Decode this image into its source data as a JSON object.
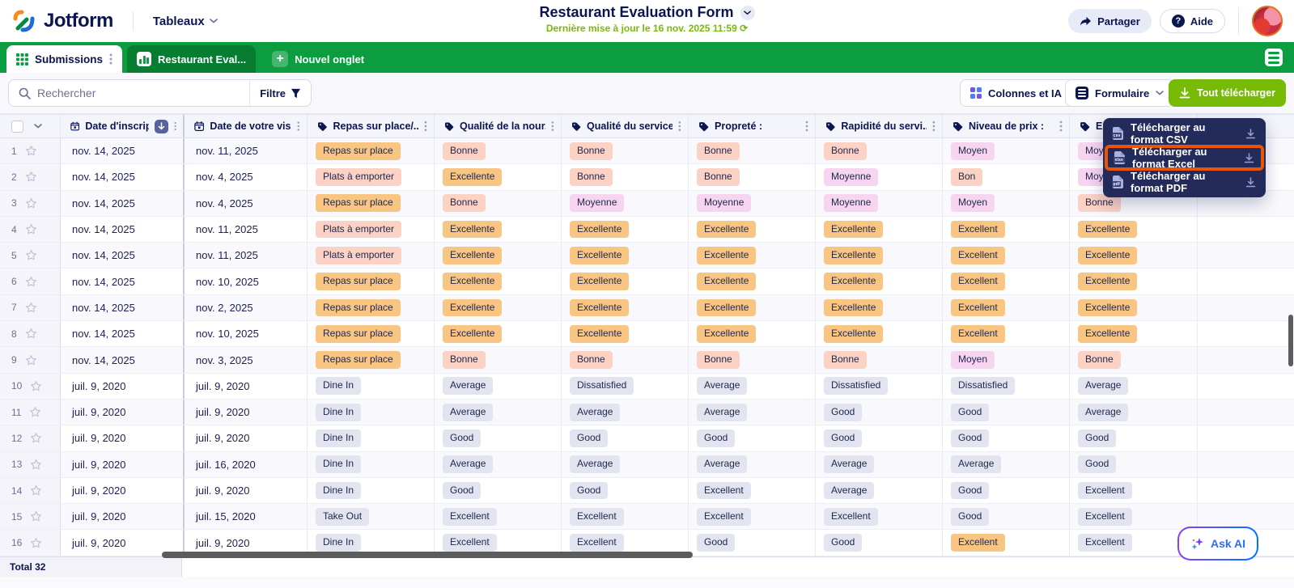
{
  "header": {
    "brand": "Jotform",
    "product_switcher": "Tableaux",
    "title": "Restaurant Evaluation Form",
    "subtitle": "Dernière mise à jour le 16 nov. 2025 11:59 ⟳",
    "share_label": "Partager",
    "help_label": "Aide"
  },
  "tabs": {
    "submissions": "Submissions",
    "report": "Restaurant Eval...",
    "new_tab": "Nouvel onglet"
  },
  "toolbar": {
    "search_placeholder": "Rechercher",
    "search_value": "",
    "filter_label": "Filtre",
    "columns_label": "Colonnes et IA",
    "form_label": "Formulaire",
    "download_all_label": "Tout télécharger"
  },
  "download_menu": {
    "items": [
      {
        "label": "Télécharger au format CSV",
        "format": "csv",
        "highlighted": false
      },
      {
        "label": "Télécharger au format Excel",
        "format": "xlsx",
        "highlighted": true
      },
      {
        "label": "Télécharger au format PDF",
        "format": "pdf",
        "highlighted": false
      }
    ]
  },
  "table": {
    "columns": [
      {
        "label": "Date d'inscript...",
        "icon": "calendar",
        "sorted": true
      },
      {
        "label": "Date de votre visi...",
        "icon": "calendar",
        "sorted": false
      },
      {
        "label": "Repas sur place/...",
        "icon": "tag",
        "sorted": false
      },
      {
        "label": "Qualité de la nour...",
        "icon": "tag",
        "sorted": false
      },
      {
        "label": "Qualité du service :",
        "icon": "tag",
        "sorted": false
      },
      {
        "label": "Propreté :",
        "icon": "tag",
        "sorted": false
      },
      {
        "label": "Rapidité du servi...",
        "icon": "tag",
        "sorted": false
      },
      {
        "label": "Niveau de prix :",
        "icon": "tag",
        "sorted": false
      },
      {
        "label": "Ex",
        "icon": "tag",
        "sorted": false
      }
    ],
    "rows": [
      {
        "num": "1",
        "date1": "nov. 14, 2025",
        "date2": "nov. 11, 2025",
        "cells": [
          {
            "t": "Repas sur place",
            "c": "orange"
          },
          {
            "t": "Bonne",
            "c": "salmon"
          },
          {
            "t": "Bonne",
            "c": "salmon"
          },
          {
            "t": "Bonne",
            "c": "salmon"
          },
          {
            "t": "Bonne",
            "c": "salmon"
          },
          {
            "t": "Moyen",
            "c": "pink"
          },
          {
            "t": "Moyenne",
            "c": "pink"
          }
        ]
      },
      {
        "num": "2",
        "date1": "nov. 14, 2025",
        "date2": "nov. 4, 2025",
        "cells": [
          {
            "t": "Plats à emporter",
            "c": "salmon"
          },
          {
            "t": "Excellente",
            "c": "orange"
          },
          {
            "t": "Bonne",
            "c": "salmon"
          },
          {
            "t": "Bonne",
            "c": "salmon"
          },
          {
            "t": "Moyenne",
            "c": "pink"
          },
          {
            "t": "Bon",
            "c": "salmon"
          },
          {
            "t": "Moyenne",
            "c": "pink"
          }
        ]
      },
      {
        "num": "3",
        "date1": "nov. 14, 2025",
        "date2": "nov. 4, 2025",
        "cells": [
          {
            "t": "Repas sur place",
            "c": "orange"
          },
          {
            "t": "Bonne",
            "c": "salmon"
          },
          {
            "t": "Moyenne",
            "c": "pink"
          },
          {
            "t": "Moyenne",
            "c": "pink"
          },
          {
            "t": "Moyenne",
            "c": "pink"
          },
          {
            "t": "Moyen",
            "c": "pink"
          },
          {
            "t": "Bonne",
            "c": "salmon"
          }
        ]
      },
      {
        "num": "4",
        "date1": "nov. 14, 2025",
        "date2": "nov. 11, 2025",
        "cells": [
          {
            "t": "Plats à emporter",
            "c": "salmon"
          },
          {
            "t": "Excellente",
            "c": "orange"
          },
          {
            "t": "Excellente",
            "c": "orange"
          },
          {
            "t": "Excellente",
            "c": "orange"
          },
          {
            "t": "Excellente",
            "c": "orange"
          },
          {
            "t": "Excellent",
            "c": "orange"
          },
          {
            "t": "Excellente",
            "c": "orange"
          }
        ]
      },
      {
        "num": "5",
        "date1": "nov. 14, 2025",
        "date2": "nov. 11, 2025",
        "cells": [
          {
            "t": "Plats à emporter",
            "c": "salmon"
          },
          {
            "t": "Excellente",
            "c": "orange"
          },
          {
            "t": "Excellente",
            "c": "orange"
          },
          {
            "t": "Excellente",
            "c": "orange"
          },
          {
            "t": "Excellente",
            "c": "orange"
          },
          {
            "t": "Excellent",
            "c": "orange"
          },
          {
            "t": "Excellente",
            "c": "orange"
          }
        ]
      },
      {
        "num": "6",
        "date1": "nov. 14, 2025",
        "date2": "nov. 10, 2025",
        "cells": [
          {
            "t": "Repas sur place",
            "c": "orange"
          },
          {
            "t": "Excellente",
            "c": "orange"
          },
          {
            "t": "Excellente",
            "c": "orange"
          },
          {
            "t": "Excellente",
            "c": "orange"
          },
          {
            "t": "Excellente",
            "c": "orange"
          },
          {
            "t": "Excellent",
            "c": "orange"
          },
          {
            "t": "Excellente",
            "c": "orange"
          }
        ]
      },
      {
        "num": "7",
        "date1": "nov. 14, 2025",
        "date2": "nov. 2, 2025",
        "cells": [
          {
            "t": "Repas sur place",
            "c": "orange"
          },
          {
            "t": "Excellente",
            "c": "orange"
          },
          {
            "t": "Excellente",
            "c": "orange"
          },
          {
            "t": "Excellente",
            "c": "orange"
          },
          {
            "t": "Excellente",
            "c": "orange"
          },
          {
            "t": "Excellent",
            "c": "orange"
          },
          {
            "t": "Excellente",
            "c": "orange"
          }
        ]
      },
      {
        "num": "8",
        "date1": "nov. 14, 2025",
        "date2": "nov. 10, 2025",
        "cells": [
          {
            "t": "Repas sur place",
            "c": "orange"
          },
          {
            "t": "Excellente",
            "c": "orange"
          },
          {
            "t": "Excellente",
            "c": "orange"
          },
          {
            "t": "Excellente",
            "c": "orange"
          },
          {
            "t": "Excellente",
            "c": "orange"
          },
          {
            "t": "Excellent",
            "c": "orange"
          },
          {
            "t": "Excellente",
            "c": "orange"
          }
        ]
      },
      {
        "num": "9",
        "date1": "nov. 14, 2025",
        "date2": "nov. 3, 2025",
        "cells": [
          {
            "t": "Repas sur place",
            "c": "orange"
          },
          {
            "t": "Bonne",
            "c": "salmon"
          },
          {
            "t": "Bonne",
            "c": "salmon"
          },
          {
            "t": "Bonne",
            "c": "salmon"
          },
          {
            "t": "Bonne",
            "c": "salmon"
          },
          {
            "t": "Moyen",
            "c": "pink"
          },
          {
            "t": "Bonne",
            "c": "salmon"
          }
        ]
      },
      {
        "num": "10",
        "date1": "juil. 9, 2020",
        "date2": "juil. 9, 2020",
        "cells": [
          {
            "t": "Dine In",
            "c": "gray"
          },
          {
            "t": "Average",
            "c": "gray"
          },
          {
            "t": "Dissatisfied",
            "c": "gray"
          },
          {
            "t": "Average",
            "c": "gray"
          },
          {
            "t": "Dissatisfied",
            "c": "gray"
          },
          {
            "t": "Dissatisfied",
            "c": "gray"
          },
          {
            "t": "Average",
            "c": "gray"
          }
        ]
      },
      {
        "num": "11",
        "date1": "juil. 9, 2020",
        "date2": "juil. 9, 2020",
        "cells": [
          {
            "t": "Dine In",
            "c": "gray"
          },
          {
            "t": "Average",
            "c": "gray"
          },
          {
            "t": "Average",
            "c": "gray"
          },
          {
            "t": "Average",
            "c": "gray"
          },
          {
            "t": "Good",
            "c": "gray"
          },
          {
            "t": "Good",
            "c": "gray"
          },
          {
            "t": "Average",
            "c": "gray"
          }
        ]
      },
      {
        "num": "12",
        "date1": "juil. 9, 2020",
        "date2": "juil. 9, 2020",
        "cells": [
          {
            "t": "Dine In",
            "c": "gray"
          },
          {
            "t": "Good",
            "c": "gray"
          },
          {
            "t": "Good",
            "c": "gray"
          },
          {
            "t": "Good",
            "c": "gray"
          },
          {
            "t": "Good",
            "c": "gray"
          },
          {
            "t": "Good",
            "c": "gray"
          },
          {
            "t": "Good",
            "c": "gray"
          }
        ]
      },
      {
        "num": "13",
        "date1": "juil. 9, 2020",
        "date2": "juil. 16, 2020",
        "cells": [
          {
            "t": "Dine In",
            "c": "gray"
          },
          {
            "t": "Average",
            "c": "gray"
          },
          {
            "t": "Average",
            "c": "gray"
          },
          {
            "t": "Average",
            "c": "gray"
          },
          {
            "t": "Average",
            "c": "gray"
          },
          {
            "t": "Average",
            "c": "gray"
          },
          {
            "t": "Good",
            "c": "gray"
          }
        ]
      },
      {
        "num": "14",
        "date1": "juil. 9, 2020",
        "date2": "juil. 9, 2020",
        "cells": [
          {
            "t": "Dine In",
            "c": "gray"
          },
          {
            "t": "Good",
            "c": "gray"
          },
          {
            "t": "Good",
            "c": "gray"
          },
          {
            "t": "Excellent",
            "c": "gray"
          },
          {
            "t": "Average",
            "c": "gray"
          },
          {
            "t": "Good",
            "c": "gray"
          },
          {
            "t": "Excellent",
            "c": "gray"
          }
        ]
      },
      {
        "num": "15",
        "date1": "juil. 9, 2020",
        "date2": "juil. 15, 2020",
        "cells": [
          {
            "t": "Take Out",
            "c": "gray"
          },
          {
            "t": "Excellent",
            "c": "gray"
          },
          {
            "t": "Excellent",
            "c": "gray"
          },
          {
            "t": "Excellent",
            "c": "gray"
          },
          {
            "t": "Excellent",
            "c": "gray"
          },
          {
            "t": "Good",
            "c": "gray"
          },
          {
            "t": "Excellent",
            "c": "gray"
          }
        ]
      },
      {
        "num": "16",
        "date1": "juil. 9, 2020",
        "date2": "juil. 9, 2020",
        "cells": [
          {
            "t": "Dine In",
            "c": "gray"
          },
          {
            "t": "Excellent",
            "c": "gray"
          },
          {
            "t": "Excellent",
            "c": "gray"
          },
          {
            "t": "Good",
            "c": "gray"
          },
          {
            "t": "Good",
            "c": "gray"
          },
          {
            "t": "Excellent",
            "c": "orange"
          },
          {
            "t": "Excellent",
            "c": "gray"
          }
        ]
      }
    ]
  },
  "footer": {
    "total_label": "Total 32"
  },
  "ask_ai_label": "Ask AI",
  "colors": {
    "brand_green": "#0b9d3f",
    "action_green": "#78bb07",
    "navy": "#0a1551",
    "menu_navy": "#232b5a",
    "highlight_orange": "#e85506",
    "badge_orange": "#f8c583",
    "badge_salmon": "#fbd2c3",
    "badge_pink": "#f7d4ef",
    "badge_gray": "#e2e5f0"
  }
}
